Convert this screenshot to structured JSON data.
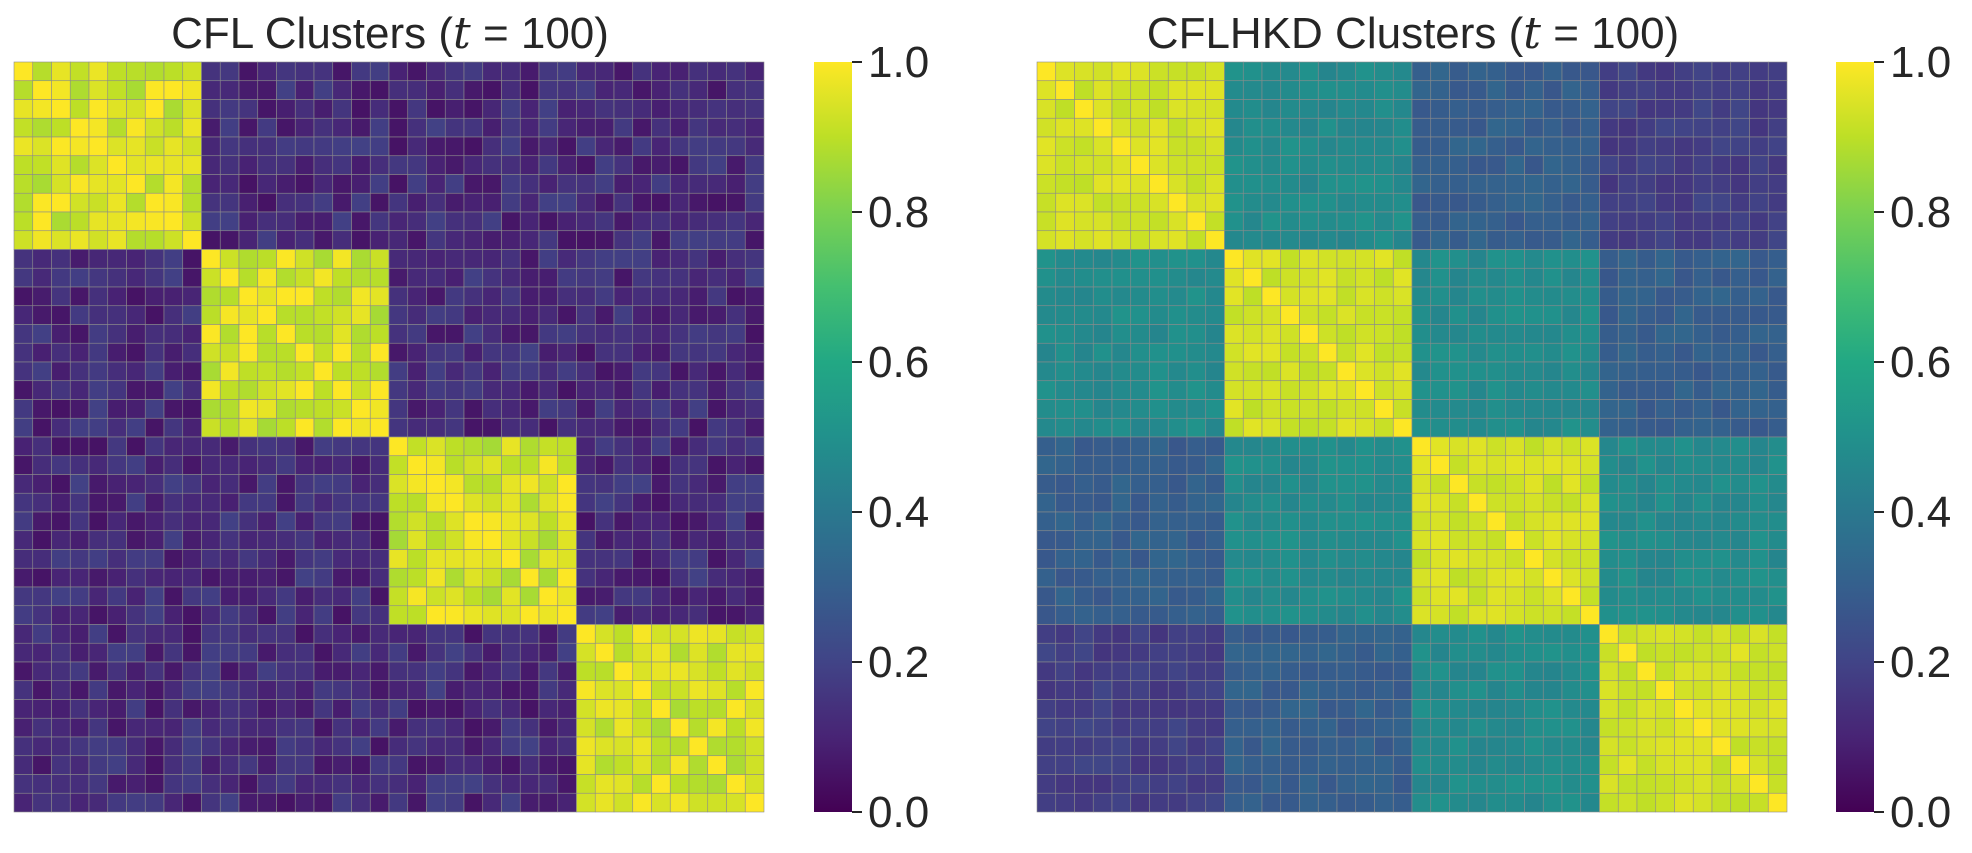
{
  "chart_data": [
    {
      "type": "heatmap",
      "title_prefix": "CFL Clusters (",
      "title_var": "t",
      "title_suffix": " = 100)",
      "n_clients": 40,
      "clusters": 4,
      "cluster_size": 10,
      "within_cluster_value": 0.93,
      "between_cluster_values": [
        [
          0.93,
          0.12,
          0.12,
          0.12
        ],
        [
          0.12,
          0.93,
          0.12,
          0.12
        ],
        [
          0.12,
          0.12,
          0.93,
          0.12
        ],
        [
          0.12,
          0.12,
          0.12,
          0.93
        ]
      ],
      "noise": 0.07,
      "diagonal_value": 1.0,
      "colormap": "viridis",
      "colorbar_ticks": [
        "0.0",
        "0.2",
        "0.4",
        "0.6",
        "0.8",
        "1.0"
      ],
      "vmin": 0.0,
      "vmax": 1.0
    },
    {
      "type": "heatmap",
      "title_prefix": "CFLHKD Clusters (",
      "title_var": "t",
      "title_suffix": " = 100)",
      "n_clients": 40,
      "clusters": 4,
      "cluster_size": 10,
      "within_cluster_value": 0.93,
      "between_cluster_values": [
        [
          0.93,
          0.48,
          0.3,
          0.18
        ],
        [
          0.48,
          0.93,
          0.48,
          0.3
        ],
        [
          0.3,
          0.48,
          0.93,
          0.48
        ],
        [
          0.18,
          0.3,
          0.48,
          0.93
        ]
      ],
      "noise": 0.03,
      "diagonal_value": 1.0,
      "colormap": "viridis",
      "colorbar_ticks": [
        "0.0",
        "0.2",
        "0.4",
        "0.6",
        "0.8",
        "1.0"
      ],
      "vmin": 0.0,
      "vmax": 1.0
    }
  ],
  "colors": {
    "grid_line": "#8c8c8c",
    "text": "#262626",
    "background": "#ffffff"
  }
}
